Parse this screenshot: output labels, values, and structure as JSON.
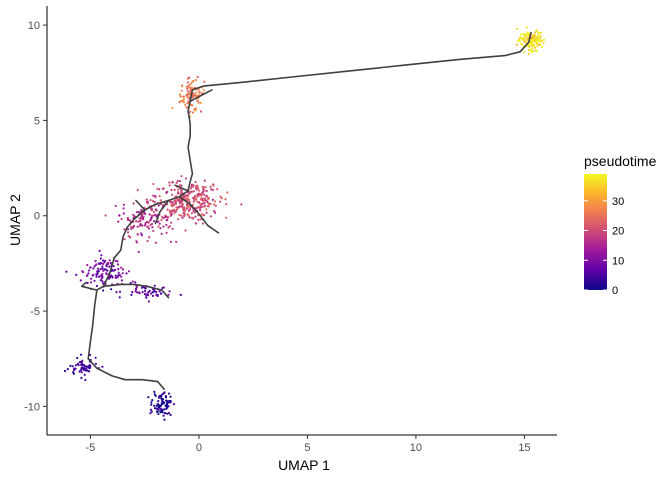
{
  "chart_data": {
    "type": "scatter",
    "xlabel": "UMAP 1",
    "ylabel": "UMAP 2",
    "xlim": [
      -7.0,
      16.5
    ],
    "ylim": [
      -11.5,
      11.0
    ],
    "xticks": [
      -5,
      0,
      5,
      10,
      15
    ],
    "yticks": [
      -10,
      -5,
      0,
      5,
      10
    ],
    "grid": false,
    "legend": {
      "title": "pseudotime",
      "placement": "right",
      "ticks": [
        0,
        10,
        20,
        30
      ],
      "range": [
        0,
        39
      ]
    },
    "colormap": [
      "#0d0887",
      "#5c01a6",
      "#9c179e",
      "#cc4778",
      "#ed7953",
      "#fdb42f",
      "#f0f921"
    ],
    "trajectory_color": "#404040",
    "clusters": [
      {
        "center": [
          15.3,
          9.2
        ],
        "spread": [
          0.5,
          0.45
        ],
        "count": 130,
        "pseudotime": 37
      },
      {
        "center": [
          -0.3,
          6.3
        ],
        "spread": [
          0.45,
          0.7
        ],
        "count": 110,
        "pseudotime": 26
      },
      {
        "center": [
          -0.6,
          0.8
        ],
        "spread": [
          1.3,
          0.9
        ],
        "count": 300,
        "pseudotime": 20
      },
      {
        "center": [
          -2.5,
          -0.2
        ],
        "spread": [
          1.0,
          0.9
        ],
        "count": 140,
        "pseudotime": 16
      },
      {
        "center": [
          -4.3,
          -3.0
        ],
        "spread": [
          0.8,
          0.7
        ],
        "count": 120,
        "pseudotime": 9
      },
      {
        "center": [
          -2.3,
          -4.0
        ],
        "spread": [
          0.9,
          0.35
        ],
        "count": 50,
        "pseudotime": 7
      },
      {
        "center": [
          -5.3,
          -8.0
        ],
        "spread": [
          0.55,
          0.4
        ],
        "count": 60,
        "pseudotime": 4
      },
      {
        "center": [
          -1.7,
          -9.9
        ],
        "spread": [
          0.35,
          0.5
        ],
        "count": 90,
        "pseudotime": 1
      }
    ],
    "trajectory": [
      [
        [
          -1.9,
          -8.7
        ],
        [
          -2.6,
          -8.6
        ],
        [
          -3.4,
          -8.6
        ],
        [
          -4.0,
          -8.4
        ],
        [
          -4.7,
          -8.0
        ],
        [
          -5.1,
          -7.5
        ],
        [
          -5.0,
          -6.6
        ],
        [
          -4.9,
          -5.8
        ],
        [
          -4.8,
          -4.7
        ],
        [
          -4.7,
          -3.9
        ],
        [
          -4.4,
          -3.7
        ],
        [
          -3.6,
          -3.6
        ],
        [
          -3.0,
          -3.6
        ],
        [
          -2.4,
          -3.7
        ],
        [
          -1.7,
          -3.9
        ],
        [
          -1.4,
          -4.3
        ]
      ],
      [
        [
          -1.6,
          -9.1
        ],
        [
          -1.9,
          -8.7
        ]
      ],
      [
        [
          -4.7,
          -3.9
        ],
        [
          -5.4,
          -3.7
        ],
        [
          -5.2,
          -3.5
        ]
      ],
      [
        [
          -4.4,
          -3.7
        ],
        [
          -4.1,
          -3.0
        ],
        [
          -3.9,
          -2.2
        ],
        [
          -3.6,
          -1.8
        ],
        [
          -3.5,
          -1.1
        ],
        [
          -3.3,
          -0.6
        ],
        [
          -3.0,
          -0.2
        ],
        [
          -2.5,
          0.3
        ],
        [
          -2.0,
          0.6
        ],
        [
          -1.4,
          0.8
        ],
        [
          -0.9,
          1.0
        ],
        [
          -0.5,
          1.3
        ],
        [
          -0.4,
          1.8
        ],
        [
          -0.3,
          2.2
        ],
        [
          -0.4,
          2.9
        ],
        [
          -0.5,
          3.6
        ],
        [
          -0.4,
          4.2
        ],
        [
          -0.4,
          4.8
        ],
        [
          -0.5,
          5.5
        ],
        [
          -0.4,
          6.0
        ],
        [
          -0.3,
          6.6
        ],
        [
          0.2,
          6.8
        ],
        [
          2.0,
          7.0
        ],
        [
          4.5,
          7.3
        ],
        [
          7.0,
          7.6
        ],
        [
          9.5,
          7.9
        ],
        [
          12.0,
          8.2
        ],
        [
          14.1,
          8.4
        ],
        [
          14.8,
          8.6
        ],
        [
          15.2,
          9.1
        ],
        [
          15.3,
          9.6
        ]
      ],
      [
        [
          -0.9,
          1.0
        ],
        [
          -0.4,
          0.6
        ],
        [
          0.0,
          0.1
        ],
        [
          0.4,
          -0.5
        ],
        [
          0.9,
          -0.9
        ]
      ],
      [
        [
          -1.4,
          0.8
        ],
        [
          -1.8,
          0.2
        ],
        [
          -2.0,
          -0.4
        ]
      ],
      [
        [
          -2.5,
          0.3
        ],
        [
          -2.9,
          0.8
        ]
      ],
      [
        [
          -0.5,
          1.3
        ],
        [
          -1.1,
          1.6
        ]
      ],
      [
        [
          -0.4,
          6.0
        ],
        [
          0.1,
          6.3
        ],
        [
          0.6,
          6.6
        ]
      ]
    ]
  }
}
